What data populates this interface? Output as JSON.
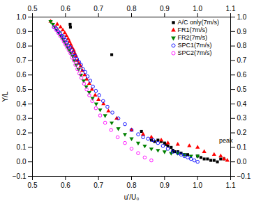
{
  "chart_data": {
    "type": "scatter",
    "xlabel": "u'/U₀",
    "ylabel": "Y/L",
    "xlim": [
      0.5,
      1.1
    ],
    "ylim": [
      -0.1,
      1.0
    ],
    "xticks": [
      0.5,
      0.6,
      0.7,
      0.8,
      0.9,
      {
        "value": 1.0,
        "label": "1.0"
      },
      1.1
    ],
    "yticks": [
      {
        "value": -0.1,
        "label": "−0.1"
      },
      {
        "value": 0,
        "label": "0.0"
      },
      0.1,
      0.2,
      0.3,
      0.4,
      0.5,
      0.6,
      0.7,
      0.8,
      0.9,
      {
        "value": 1.0,
        "label": "1.0"
      }
    ],
    "grid": false,
    "legend": "upper right",
    "series": [
      {
        "name": "A/C only(7m/s)",
        "color": "black",
        "marker": "square",
        "x": [
          0.614,
          0.615,
          0.74,
          0.83,
          0.86,
          0.87,
          0.88,
          0.89,
          0.9,
          0.905,
          0.91,
          0.92,
          0.925,
          0.93,
          0.94,
          0.95,
          0.96,
          0.97,
          1.0,
          1.01,
          1.02,
          1.03,
          1.04,
          1.05,
          1.06,
          1.07,
          1.08
        ],
        "values": [
          0.95,
          0.93,
          0.74,
          0.21,
          0.15,
          0.14,
          0.15,
          0.14,
          0.13,
          0.12,
          0.11,
          0.1,
          0.08,
          0.07,
          0.07,
          0.06,
          0.05,
          0.05,
          0.04,
          0.03,
          0.02,
          0.02,
          0.01,
          0.01,
          0.0,
          0.02,
          0.02
        ]
      },
      {
        "name": "FR1(7m/s)",
        "color": "red",
        "marker": "triangle-up",
        "x": [
          0.555,
          0.575,
          0.585,
          0.592,
          0.598,
          0.603,
          0.608,
          0.612,
          0.616,
          0.62,
          0.625,
          0.628,
          0.632,
          0.636,
          0.641,
          0.646,
          0.651,
          0.658,
          0.664,
          0.672,
          0.68,
          0.69,
          0.7,
          0.715,
          0.73,
          0.755,
          0.8,
          0.835,
          0.86,
          0.89,
          0.91,
          0.94,
          0.975,
          1.0,
          1.02,
          1.05,
          1.07,
          1.08,
          1.09
        ],
        "values": [
          0.97,
          0.95,
          0.93,
          0.91,
          0.89,
          0.87,
          0.85,
          0.83,
          0.81,
          0.79,
          0.77,
          0.75,
          0.73,
          0.7,
          0.68,
          0.66,
          0.63,
          0.6,
          0.57,
          0.54,
          0.5,
          0.46,
          0.43,
          0.4,
          0.35,
          0.3,
          0.22,
          0.19,
          0.17,
          0.15,
          0.13,
          0.12,
          0.11,
          0.1,
          0.07,
          0.05,
          0.04,
          0.02,
          0.01
        ]
      },
      {
        "name": "FR2(7m/s)",
        "color": "green",
        "marker": "triangle-down",
        "x": [
          0.555,
          0.562,
          0.568,
          0.574,
          0.58,
          0.586,
          0.592,
          0.597,
          0.602,
          0.607,
          0.612,
          0.617,
          0.622,
          0.627,
          0.633,
          0.64,
          0.647,
          0.655,
          0.663,
          0.672,
          0.682,
          0.693,
          0.705,
          0.72,
          0.74,
          0.76,
          0.78,
          0.8,
          0.82,
          0.84,
          0.86,
          0.88,
          0.9,
          0.92,
          0.94,
          0.96,
          0.98,
          1.0
        ],
        "values": [
          0.97,
          0.95,
          0.93,
          0.91,
          0.89,
          0.87,
          0.85,
          0.83,
          0.81,
          0.79,
          0.77,
          0.75,
          0.73,
          0.7,
          0.67,
          0.64,
          0.6,
          0.56,
          0.52,
          0.48,
          0.44,
          0.4,
          0.36,
          0.32,
          0.27,
          0.23,
          0.19,
          0.16,
          0.13,
          0.11,
          0.09,
          0.08,
          0.07,
          0.06,
          0.06,
          0.05,
          0.04,
          0.04
        ]
      },
      {
        "name": "SPC1(7m/s)",
        "color": "blue",
        "marker": "circle-open",
        "x": [
          0.565,
          0.572,
          0.578,
          0.584,
          0.59,
          0.595,
          0.6,
          0.605,
          0.61,
          0.615,
          0.62,
          0.625,
          0.63,
          0.635,
          0.641,
          0.647,
          0.653,
          0.66,
          0.667,
          0.675,
          0.683,
          0.692,
          0.702,
          0.714,
          0.727,
          0.742,
          0.76,
          0.78,
          0.8,
          0.82,
          0.835,
          0.85,
          0.865,
          0.88,
          0.895,
          0.91,
          0.925,
          0.94,
          0.95,
          0.96,
          0.97,
          0.98,
          0.99,
          1.0
        ],
        "values": [
          0.93,
          0.92,
          0.9,
          0.89,
          0.87,
          0.86,
          0.84,
          0.82,
          0.8,
          0.79,
          0.77,
          0.75,
          0.73,
          0.71,
          0.69,
          0.67,
          0.64,
          0.62,
          0.59,
          0.56,
          0.52,
          0.49,
          0.46,
          0.42,
          0.38,
          0.34,
          0.3,
          0.26,
          0.22,
          0.19,
          0.17,
          0.16,
          0.15,
          0.13,
          0.11,
          0.09,
          0.07,
          0.06,
          0.05,
          0.04,
          0.03,
          0.02,
          0.01,
          0.0
        ]
      },
      {
        "name": "SPC2(7m/s)",
        "color": "magenta",
        "marker": "circle-open",
        "x": [
          0.565,
          0.572,
          0.578,
          0.584,
          0.59,
          0.595,
          0.6,
          0.605,
          0.61,
          0.615,
          0.62,
          0.625,
          0.63,
          0.636,
          0.642,
          0.648,
          0.656,
          0.664,
          0.672,
          0.681,
          0.692,
          0.705,
          0.72,
          0.738,
          0.758,
          0.78,
          0.8,
          0.82,
          0.84,
          0.86
        ],
        "values": [
          0.93,
          0.91,
          0.89,
          0.87,
          0.85,
          0.83,
          0.81,
          0.79,
          0.77,
          0.75,
          0.72,
          0.7,
          0.67,
          0.64,
          0.61,
          0.58,
          0.54,
          0.5,
          0.46,
          0.42,
          0.37,
          0.32,
          0.27,
          0.22,
          0.17,
          0.13,
          0.09,
          0.06,
          0.03,
          0.01
        ]
      }
    ],
    "annotations": [
      {
        "text": "peak",
        "x": 1.065,
        "y": 0.135
      }
    ]
  }
}
